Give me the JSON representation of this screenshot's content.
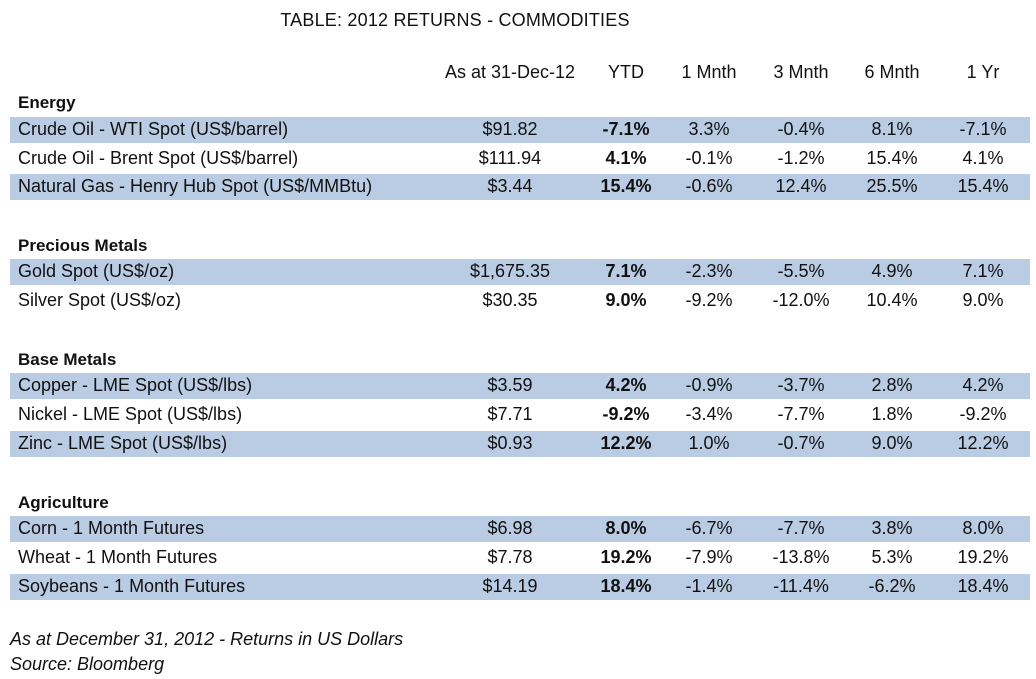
{
  "title": "TABLE: 2012 RETURNS - COMMODITIES",
  "columns": {
    "price": "As at 31-Dec-12",
    "ytd": "YTD",
    "m1": "1 Mnth",
    "m3": "3 Mnth",
    "m6": "6 Mnth",
    "y1": "1 Yr"
  },
  "sections": [
    {
      "title": "Energy",
      "rows": [
        {
          "name": "Crude Oil - WTI Spot (US$/barrel)",
          "price": "$91.82",
          "ytd": "-7.1%",
          "m1": "3.3%",
          "m3": "-0.4%",
          "m6": "8.1%",
          "y1": "-7.1%"
        },
        {
          "name": "Crude Oil - Brent Spot (US$/barrel)",
          "price": "$111.94",
          "ytd": "4.1%",
          "m1": "-0.1%",
          "m3": "-1.2%",
          "m6": "15.4%",
          "y1": "4.1%"
        },
        {
          "name": "Natural Gas - Henry Hub Spot (US$/MMBtu)",
          "price": "$3.44",
          "ytd": "15.4%",
          "m1": "-0.6%",
          "m3": "12.4%",
          "m6": "25.5%",
          "y1": "15.4%"
        }
      ]
    },
    {
      "title": "Precious Metals",
      "rows": [
        {
          "name": "Gold Spot (US$/oz)",
          "price": "$1,675.35",
          "ytd": "7.1%",
          "m1": "-2.3%",
          "m3": "-5.5%",
          "m6": "4.9%",
          "y1": "7.1%"
        },
        {
          "name": "Silver Spot (US$/oz)",
          "price": "$30.35",
          "ytd": "9.0%",
          "m1": "-9.2%",
          "m3": "-12.0%",
          "m6": "10.4%",
          "y1": "9.0%"
        }
      ]
    },
    {
      "title": "Base Metals",
      "rows": [
        {
          "name": "Copper - LME Spot (US$/lbs)",
          "price": "$3.59",
          "ytd": "4.2%",
          "m1": "-0.9%",
          "m3": "-3.7%",
          "m6": "2.8%",
          "y1": "4.2%"
        },
        {
          "name": "Nickel - LME Spot (US$/lbs)",
          "price": "$7.71",
          "ytd": "-9.2%",
          "m1": "-3.4%",
          "m3": "-7.7%",
          "m6": "1.8%",
          "y1": "-9.2%"
        },
        {
          "name": "Zinc - LME Spot (US$/lbs)",
          "price": "$0.93",
          "ytd": "12.2%",
          "m1": "1.0%",
          "m3": "-0.7%",
          "m6": "9.0%",
          "y1": "12.2%"
        }
      ]
    },
    {
      "title": "Agriculture",
      "rows": [
        {
          "name": "Corn - 1 Month Futures",
          "price": "$6.98",
          "ytd": "8.0%",
          "m1": "-6.7%",
          "m3": "-7.7%",
          "m6": "3.8%",
          "y1": "8.0%"
        },
        {
          "name": "Wheat - 1 Month Futures",
          "price": "$7.78",
          "ytd": "19.2%",
          "m1": "-7.9%",
          "m3": "-13.8%",
          "m6": "5.3%",
          "y1": "19.2%"
        },
        {
          "name": "Soybeans - 1 Month Futures",
          "price": "$14.19",
          "ytd": "18.4%",
          "m1": "-1.4%",
          "m3": "-11.4%",
          "m6": "-6.2%",
          "y1": "18.4%"
        }
      ]
    }
  ],
  "footnote": {
    "line1": "As at December 31, 2012 - Returns in US Dollars",
    "line2": "Source: Bloomberg"
  },
  "colors": {
    "row_shade": "#b9cce4"
  }
}
